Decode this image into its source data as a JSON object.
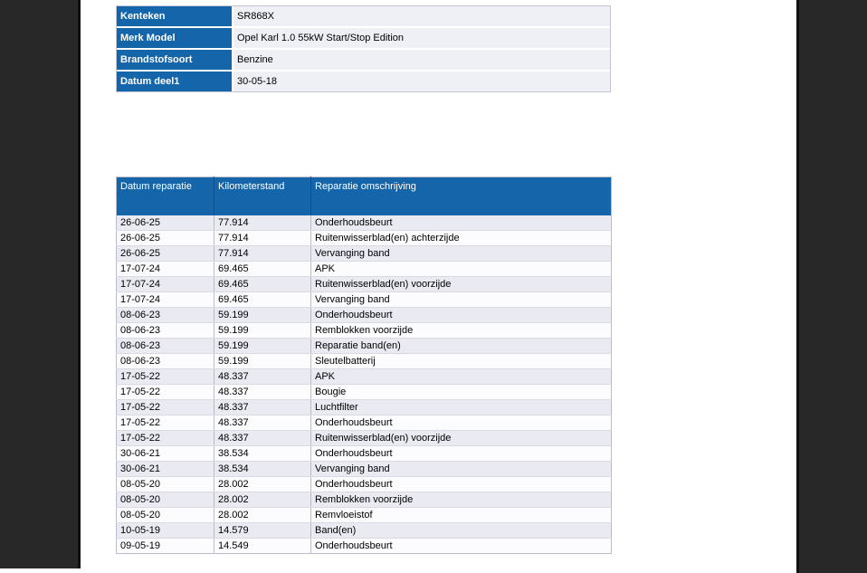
{
  "colors": {
    "accent_blue": "#1565ab",
    "blue_divider": "#0e4f8d",
    "dark_band": "#282828",
    "dark_edge_line": "#101010",
    "info_value_bg": "#eef0f6",
    "row_alt_bg": "#e9eaf2",
    "row_bg": "#fcfcfe"
  },
  "vehicle_info": {
    "rows": [
      {
        "label": "Kenteken",
        "value": "SR868X"
      },
      {
        "label": "Merk Model",
        "value": "Opel Karl 1.0 55kW Start/Stop Edition"
      },
      {
        "label": "Brandstofsoort",
        "value": "Benzine"
      },
      {
        "label": "Datum deel1",
        "value": "30-05-18"
      }
    ]
  },
  "repair_history": {
    "columns": [
      "Datum reparatie",
      "Kilometerstand",
      "Reparatie omschrijving"
    ],
    "rows": [
      [
        "26-06-25",
        "77.914",
        "Onderhoudsbeurt"
      ],
      [
        "26-06-25",
        "77.914",
        "Ruitenwisserblad(en) achterzijde"
      ],
      [
        "26-06-25",
        "77.914",
        "Vervanging band"
      ],
      [
        "17-07-24",
        "69.465",
        "APK"
      ],
      [
        "17-07-24",
        "69.465",
        "Ruitenwisserblad(en) voorzijde"
      ],
      [
        "17-07-24",
        "69.465",
        "Vervanging band"
      ],
      [
        "08-06-23",
        "59.199",
        "Onderhoudsbeurt"
      ],
      [
        "08-06-23",
        "59.199",
        "Remblokken voorzijde"
      ],
      [
        "08-06-23",
        "59.199",
        "Reparatie band(en)"
      ],
      [
        "08-06-23",
        "59.199",
        "Sleutelbatterij"
      ],
      [
        "17-05-22",
        "48.337",
        "APK"
      ],
      [
        "17-05-22",
        "48.337",
        "Bougie"
      ],
      [
        "17-05-22",
        "48.337",
        "Luchtfilter"
      ],
      [
        "17-05-22",
        "48.337",
        "Onderhoudsbeurt"
      ],
      [
        "17-05-22",
        "48.337",
        "Ruitenwisserblad(en) voorzijde"
      ],
      [
        "30-06-21",
        "38.534",
        "Onderhoudsbeurt"
      ],
      [
        "30-06-21",
        "38.534",
        "Vervanging band"
      ],
      [
        "08-05-20",
        "28.002",
        "Onderhoudsbeurt"
      ],
      [
        "08-05-20",
        "28.002",
        "Remblokken voorzijde"
      ],
      [
        "08-05-20",
        "28.002",
        "Remvloeistof"
      ],
      [
        "10-05-19",
        "14.579",
        "Band(en)"
      ],
      [
        "09-05-19",
        "14.549",
        "Onderhoudsbeurt"
      ]
    ]
  }
}
